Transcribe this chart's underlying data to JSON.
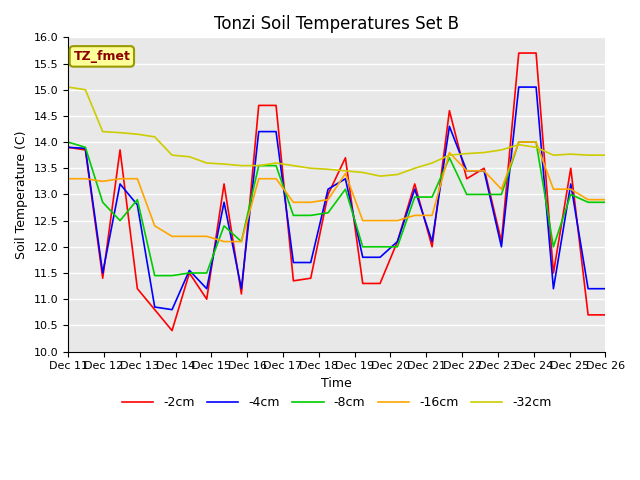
{
  "title": "Tonzi Soil Temperatures Set B",
  "xlabel": "Time",
  "ylabel": "Soil Temperature (C)",
  "ylim": [
    10.0,
    16.0
  ],
  "yticks": [
    10.0,
    10.5,
    11.0,
    11.5,
    12.0,
    12.5,
    13.0,
    13.5,
    14.0,
    14.5,
    15.0,
    15.5,
    16.0
  ],
  "x_labels": [
    "Dec 11",
    "Dec 12",
    "Dec 13",
    "Dec 14",
    "Dec 15",
    "Dec 16",
    "Dec 17",
    "Dec 18",
    "Dec 19",
    "Dec 20",
    "Dec 21",
    "Dec 22",
    "Dec 23",
    "Dec 24",
    "Dec 25",
    "Dec 26"
  ],
  "legend_label": "TZ_fmet",
  "legend_label_color": "#8B0000",
  "legend_box_color": "#FFFF99",
  "background_color": "#E8E8E8",
  "series": [
    {
      "label": "-2cm",
      "color": "#FF0000",
      "values": [
        13.9,
        13.85,
        11.4,
        13.85,
        11.2,
        10.8,
        10.4,
        11.5,
        11.0,
        13.2,
        11.1,
        14.7,
        14.7,
        11.35,
        11.4,
        13.0,
        13.7,
        11.3,
        11.3,
        12.1,
        13.2,
        12.0,
        14.6,
        13.3,
        13.5,
        12.1,
        15.7,
        15.7,
        11.5,
        13.5,
        10.7,
        10.7
      ]
    },
    {
      "label": "-4cm",
      "color": "#0000FF",
      "values": [
        13.9,
        13.88,
        11.5,
        13.2,
        12.8,
        10.85,
        10.8,
        11.55,
        11.2,
        12.85,
        11.2,
        14.2,
        14.2,
        11.7,
        11.7,
        13.1,
        13.3,
        11.8,
        11.8,
        12.1,
        13.1,
        12.1,
        14.3,
        13.45,
        13.45,
        12.0,
        15.05,
        15.05,
        11.2,
        13.2,
        11.2,
        11.2
      ]
    },
    {
      "label": "-8cm",
      "color": "#00CC00",
      "values": [
        14.0,
        13.9,
        12.85,
        12.5,
        12.9,
        11.45,
        11.45,
        11.5,
        11.5,
        12.4,
        12.1,
        13.55,
        13.55,
        12.6,
        12.6,
        12.65,
        13.1,
        12.0,
        12.0,
        12.0,
        12.95,
        12.95,
        13.7,
        13.0,
        13.0,
        13.0,
        14.0,
        14.0,
        12.0,
        13.0,
        12.85,
        12.85
      ]
    },
    {
      "label": "-16cm",
      "color": "#FFA500",
      "values": [
        13.3,
        13.3,
        13.25,
        13.3,
        13.3,
        12.4,
        12.2,
        12.2,
        12.2,
        12.1,
        12.1,
        13.3,
        13.3,
        12.85,
        12.85,
        12.9,
        13.4,
        12.5,
        12.5,
        12.5,
        12.6,
        12.6,
        13.8,
        13.45,
        13.45,
        13.1,
        14.0,
        14.0,
        13.1,
        13.1,
        12.9,
        12.9
      ]
    },
    {
      "label": "-32cm",
      "color": "#CCCC00",
      "values": [
        15.05,
        15.0,
        14.2,
        14.18,
        14.15,
        14.1,
        13.75,
        13.72,
        13.6,
        13.58,
        13.55,
        13.55,
        13.6,
        13.55,
        13.5,
        13.48,
        13.45,
        13.42,
        13.35,
        13.38,
        13.5,
        13.6,
        13.75,
        13.78,
        13.8,
        13.85,
        13.95,
        13.9,
        13.75,
        13.77,
        13.75,
        13.75
      ]
    }
  ],
  "n_points_per_day": 2,
  "title_fontsize": 12,
  "axis_label_fontsize": 9,
  "tick_fontsize": 8,
  "legend_fontsize": 9,
  "figsize": [
    6.4,
    4.8
  ],
  "dpi": 100
}
